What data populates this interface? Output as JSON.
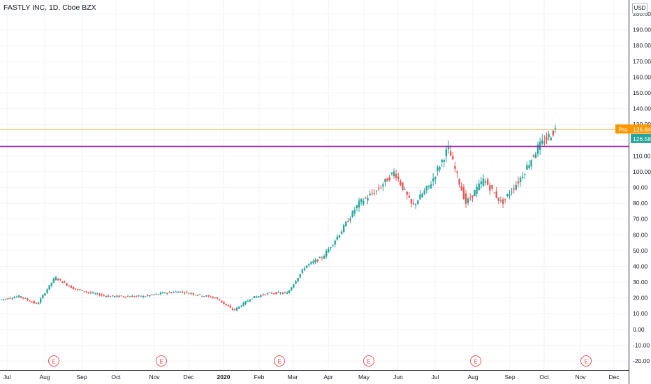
{
  "header": {
    "symbol_line": "FASTLY INC, 1D, Cboe BZX"
  },
  "price_axis": {
    "currency": "USD"
  },
  "colors": {
    "up": "#26a69a",
    "down": "#ef5350",
    "pre_line": "#ff9800",
    "level_line": "#9c27b0",
    "earnings": "#ef5350"
  },
  "chart_data": {
    "type": "candlestick",
    "title": "FASTLY INC, 1D, Cboe BZX",
    "ylim": [
      -23,
      205
    ],
    "y_ticks": [
      "200.00",
      "190.00",
      "180.00",
      "170.00",
      "160.00",
      "150.00",
      "140.00",
      "130.00",
      "120.00",
      "110.00",
      "100.00",
      "90.00",
      "80.00",
      "70.00",
      "60.00",
      "50.00",
      "40.00",
      "30.00",
      "20.00",
      "10.00",
      "0.00",
      "-10.00",
      "-20.00"
    ],
    "x_ticks": [
      "Jul",
      "Aug",
      "Sep",
      "Oct",
      "Nov",
      "Dec",
      "2020",
      "Feb",
      "Mar",
      "Apr",
      "May",
      "Jun",
      "Jul",
      "Aug",
      "Sep",
      "Oct",
      "Nov",
      "Dec"
    ],
    "series": [
      {
        "x": "Jul",
        "close": 19
      },
      {
        "x": "Aug",
        "close": 21
      },
      {
        "x": "Aug",
        "close": 16
      },
      {
        "x": "Sep",
        "close": 33
      },
      {
        "x": "Oct",
        "close": 26
      },
      {
        "x": "Oct",
        "close": 23
      },
      {
        "x": "Nov",
        "close": 21
      },
      {
        "x": "Dec",
        "close": 21
      },
      {
        "x": "2020",
        "close": 21
      },
      {
        "x": "2020",
        "close": 23
      },
      {
        "x": "Feb",
        "close": 24
      },
      {
        "x": "Feb",
        "close": 22
      },
      {
        "x": "Mar",
        "close": 20
      },
      {
        "x": "Mar",
        "close": 12
      },
      {
        "x": "Apr",
        "close": 20
      },
      {
        "x": "Apr",
        "close": 23
      },
      {
        "x": "May",
        "close": 23
      },
      {
        "x": "May",
        "close": 40
      },
      {
        "x": "Jun",
        "close": 46
      },
      {
        "x": "Jun",
        "close": 62
      },
      {
        "x": "Jun",
        "close": 80
      },
      {
        "x": "Jul",
        "close": 88
      },
      {
        "x": "Jul",
        "close": 100
      },
      {
        "x": "Jul",
        "close": 78
      },
      {
        "x": "Aug",
        "close": 92
      },
      {
        "x": "Aug",
        "close": 115
      },
      {
        "x": "Aug",
        "close": 80
      },
      {
        "x": "Sep",
        "close": 95
      },
      {
        "x": "Sep",
        "close": 80
      },
      {
        "x": "Oct",
        "close": 95
      },
      {
        "x": "Oct",
        "close": 115
      },
      {
        "x": "Oct",
        "close": 126.58
      }
    ],
    "annotations": [
      {
        "label": "Pre",
        "value": "126.84",
        "price": 126.84,
        "color": "#ff9800"
      },
      {
        "label": "",
        "value": "126.58",
        "price": 126.58,
        "color": "#26a69a"
      },
      {
        "label": "horizontal-level",
        "value": "",
        "price": 116,
        "color": "#9c27b0"
      }
    ],
    "earnings_markers": [
      "E",
      "E",
      "E",
      "E",
      "E",
      "E"
    ],
    "grid": true
  }
}
